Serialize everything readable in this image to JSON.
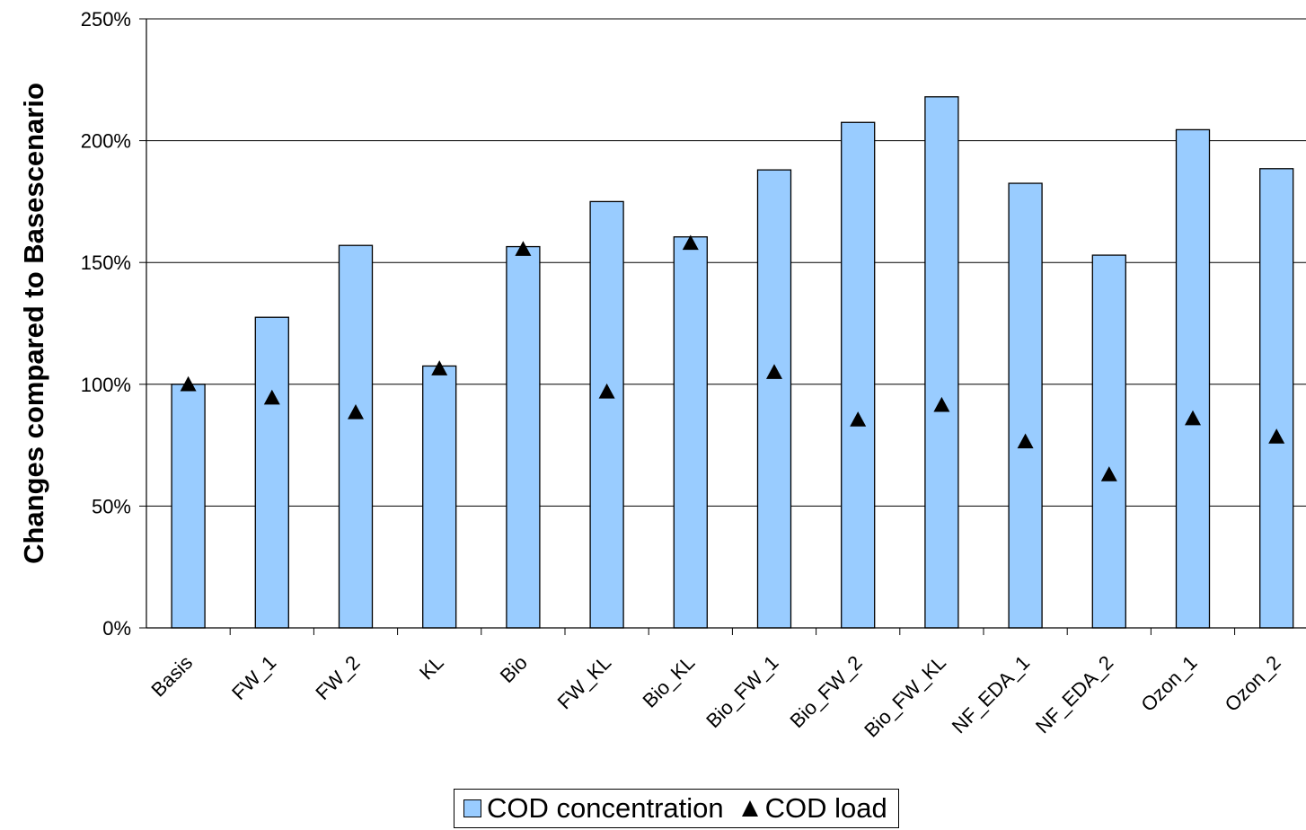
{
  "chart_data": {
    "type": "bar",
    "ylabel": "Changes compared to Basescenario",
    "ylim": [
      0,
      250
    ],
    "yticks": [
      0,
      50,
      100,
      150,
      200,
      250
    ],
    "ytick_labels": [
      "0%",
      "50%",
      "100%",
      "150%",
      "200%",
      "250%"
    ],
    "grid": true,
    "legend_position": "bottom",
    "categories": [
      "Basis",
      "FW_1",
      "FW_2",
      "KL",
      "Bio",
      "FW_KL",
      "Bio_KL",
      "Bio_FW_1",
      "Bio_FW_2",
      "Bio_FW_KL",
      "NF_EDA_1",
      "NF_EDA_2",
      "Ozon_1",
      "Ozon_2"
    ],
    "series": [
      {
        "name": "COD concentration",
        "kind": "bar",
        "color": "#99ccff",
        "values": [
          100,
          127.5,
          157,
          107.5,
          156.5,
          175,
          160.5,
          188,
          207.5,
          218,
          182.5,
          153,
          204.5,
          188.5
        ]
      },
      {
        "name": "COD load",
        "kind": "marker",
        "marker": "triangle",
        "color": "#000000",
        "values": [
          100,
          94.5,
          88.5,
          106.5,
          155.5,
          97,
          158,
          105,
          85.5,
          91.5,
          76.5,
          63,
          86,
          78.5
        ]
      }
    ]
  }
}
